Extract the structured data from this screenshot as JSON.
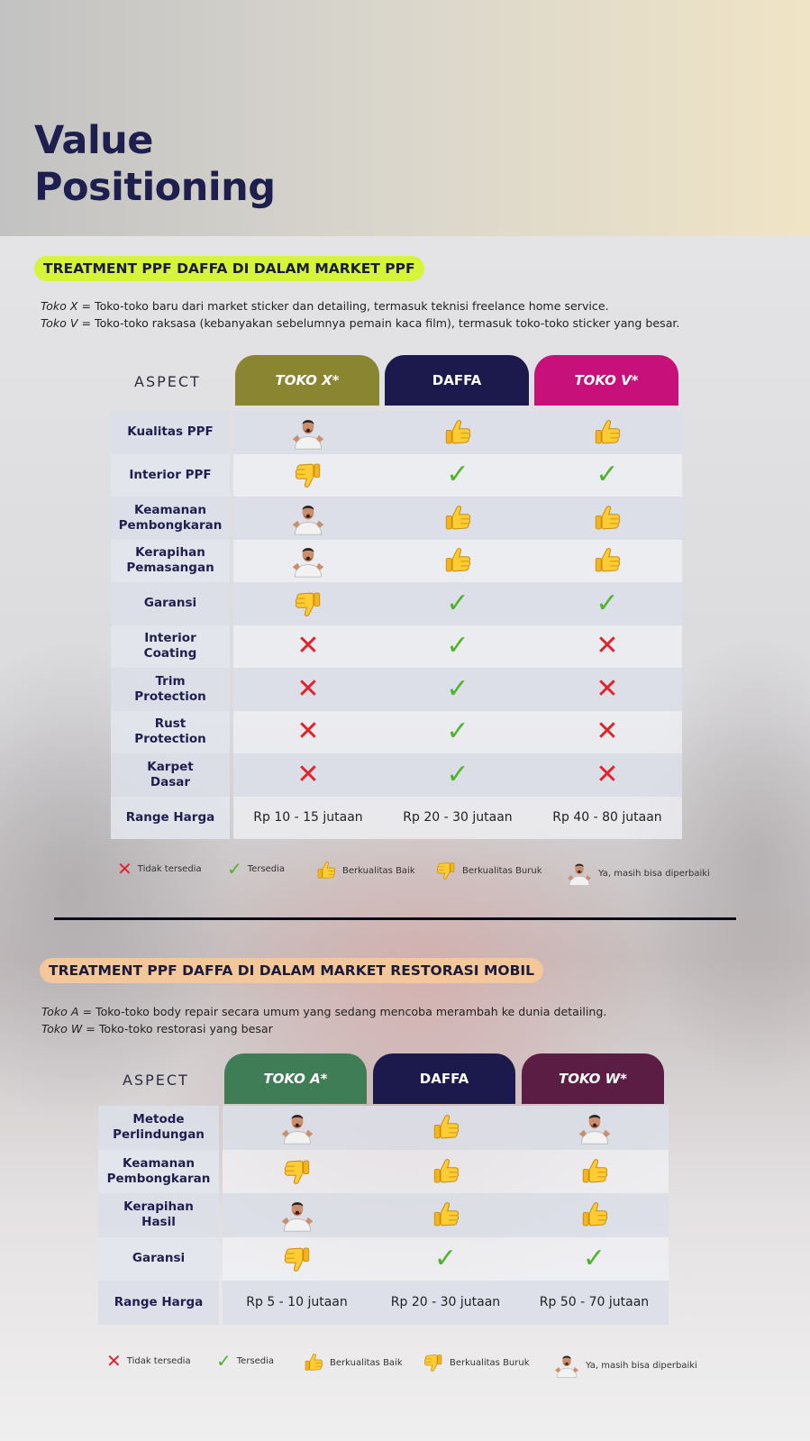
{
  "title": "Value Positioning",
  "colors": {
    "toko_x": "#8a8530",
    "daffa": "#1c1a4c",
    "toko_v": "#c8107a",
    "toko_a": "#3f7d56",
    "toko_w": "#5c1d45",
    "pill1": "#d6f53a",
    "pill2": "#f4c79a"
  },
  "section1": {
    "pill": "TREATMENT PPF DAFFA DI DALAM MARKET PPF",
    "note1_italic": "Toko X",
    "note1_rest": " = Toko-toko baru dari market sticker dan detailing, termasuk teknisi freelance home service.",
    "note2_italic": "Toko V",
    "note2_rest": " = Toko-toko raksasa (kebanyakan sebelumnya pemain kaca film), termasuk toko-toko sticker yang besar.",
    "aspect_header": "ASPECT",
    "columns": [
      "TOKO X*",
      "DAFFA",
      "TOKO V*"
    ],
    "rows": [
      {
        "aspect": "Kualitas PPF",
        "values": [
          "man",
          "up",
          "up"
        ]
      },
      {
        "aspect": "Interior PPF",
        "values": [
          "down",
          "check",
          "check"
        ]
      },
      {
        "aspect": "Keamanan\nPembongkaran",
        "values": [
          "man",
          "up",
          "up"
        ]
      },
      {
        "aspect": "Kerapihan\nPemasangan",
        "values": [
          "man",
          "up",
          "up"
        ]
      },
      {
        "aspect": "Garansi",
        "values": [
          "down",
          "check",
          "check"
        ]
      },
      {
        "aspect": "Interior\nCoating",
        "values": [
          "x",
          "check",
          "x"
        ]
      },
      {
        "aspect": "Trim\nProtection",
        "values": [
          "x",
          "check",
          "x"
        ]
      },
      {
        "aspect": "Rust\nProtection",
        "values": [
          "x",
          "check",
          "x"
        ]
      },
      {
        "aspect": "Karpet\nDasar",
        "values": [
          "x",
          "check",
          "x"
        ]
      }
    ],
    "price_label": "Range Harga",
    "prices": [
      "Rp 10 - 15 jutaan",
      "Rp 20 - 30 jutaan",
      "Rp 40 - 80 jutaan"
    ]
  },
  "section2": {
    "pill": "TREATMENT PPF DAFFA DI DALAM MARKET RESTORASI MOBIL",
    "note1_italic": "Toko A",
    "note1_rest": " = Toko-toko body repair secara umum yang sedang mencoba merambah ke dunia detailing.",
    "note2_italic": "Toko W",
    "note2_rest": " = Toko-toko restorasi yang besar",
    "aspect_header": "ASPECT",
    "columns": [
      "TOKO A*",
      "DAFFA",
      "TOKO W*"
    ],
    "rows": [
      {
        "aspect": "Metode\nPerlindungan",
        "values": [
          "man",
          "up",
          "man"
        ]
      },
      {
        "aspect": "Keamanan\nPembongkaran",
        "values": [
          "down",
          "up",
          "up"
        ]
      },
      {
        "aspect": "Kerapihan\nHasil",
        "values": [
          "man",
          "up",
          "up"
        ]
      },
      {
        "aspect": "Garansi",
        "values": [
          "down",
          "check",
          "check"
        ]
      }
    ],
    "price_label": "Range Harga",
    "prices": [
      "Rp 5 - 10 jutaan",
      "Rp 20 - 30 jutaan",
      "Rp 50 - 70 jutaan"
    ]
  },
  "legend": {
    "x": "Tidak tersedia",
    "check": "Tersedia",
    "up": "Berkualitas Baik",
    "down": "Berkualitas Buruk",
    "man": "Ya, masih bisa diperbaiki"
  },
  "icons": {
    "x": "cross-icon",
    "check": "check-icon",
    "up": "thumbs-up-icon",
    "down": "thumbs-down-icon",
    "man": "shrugging-man-icon"
  }
}
